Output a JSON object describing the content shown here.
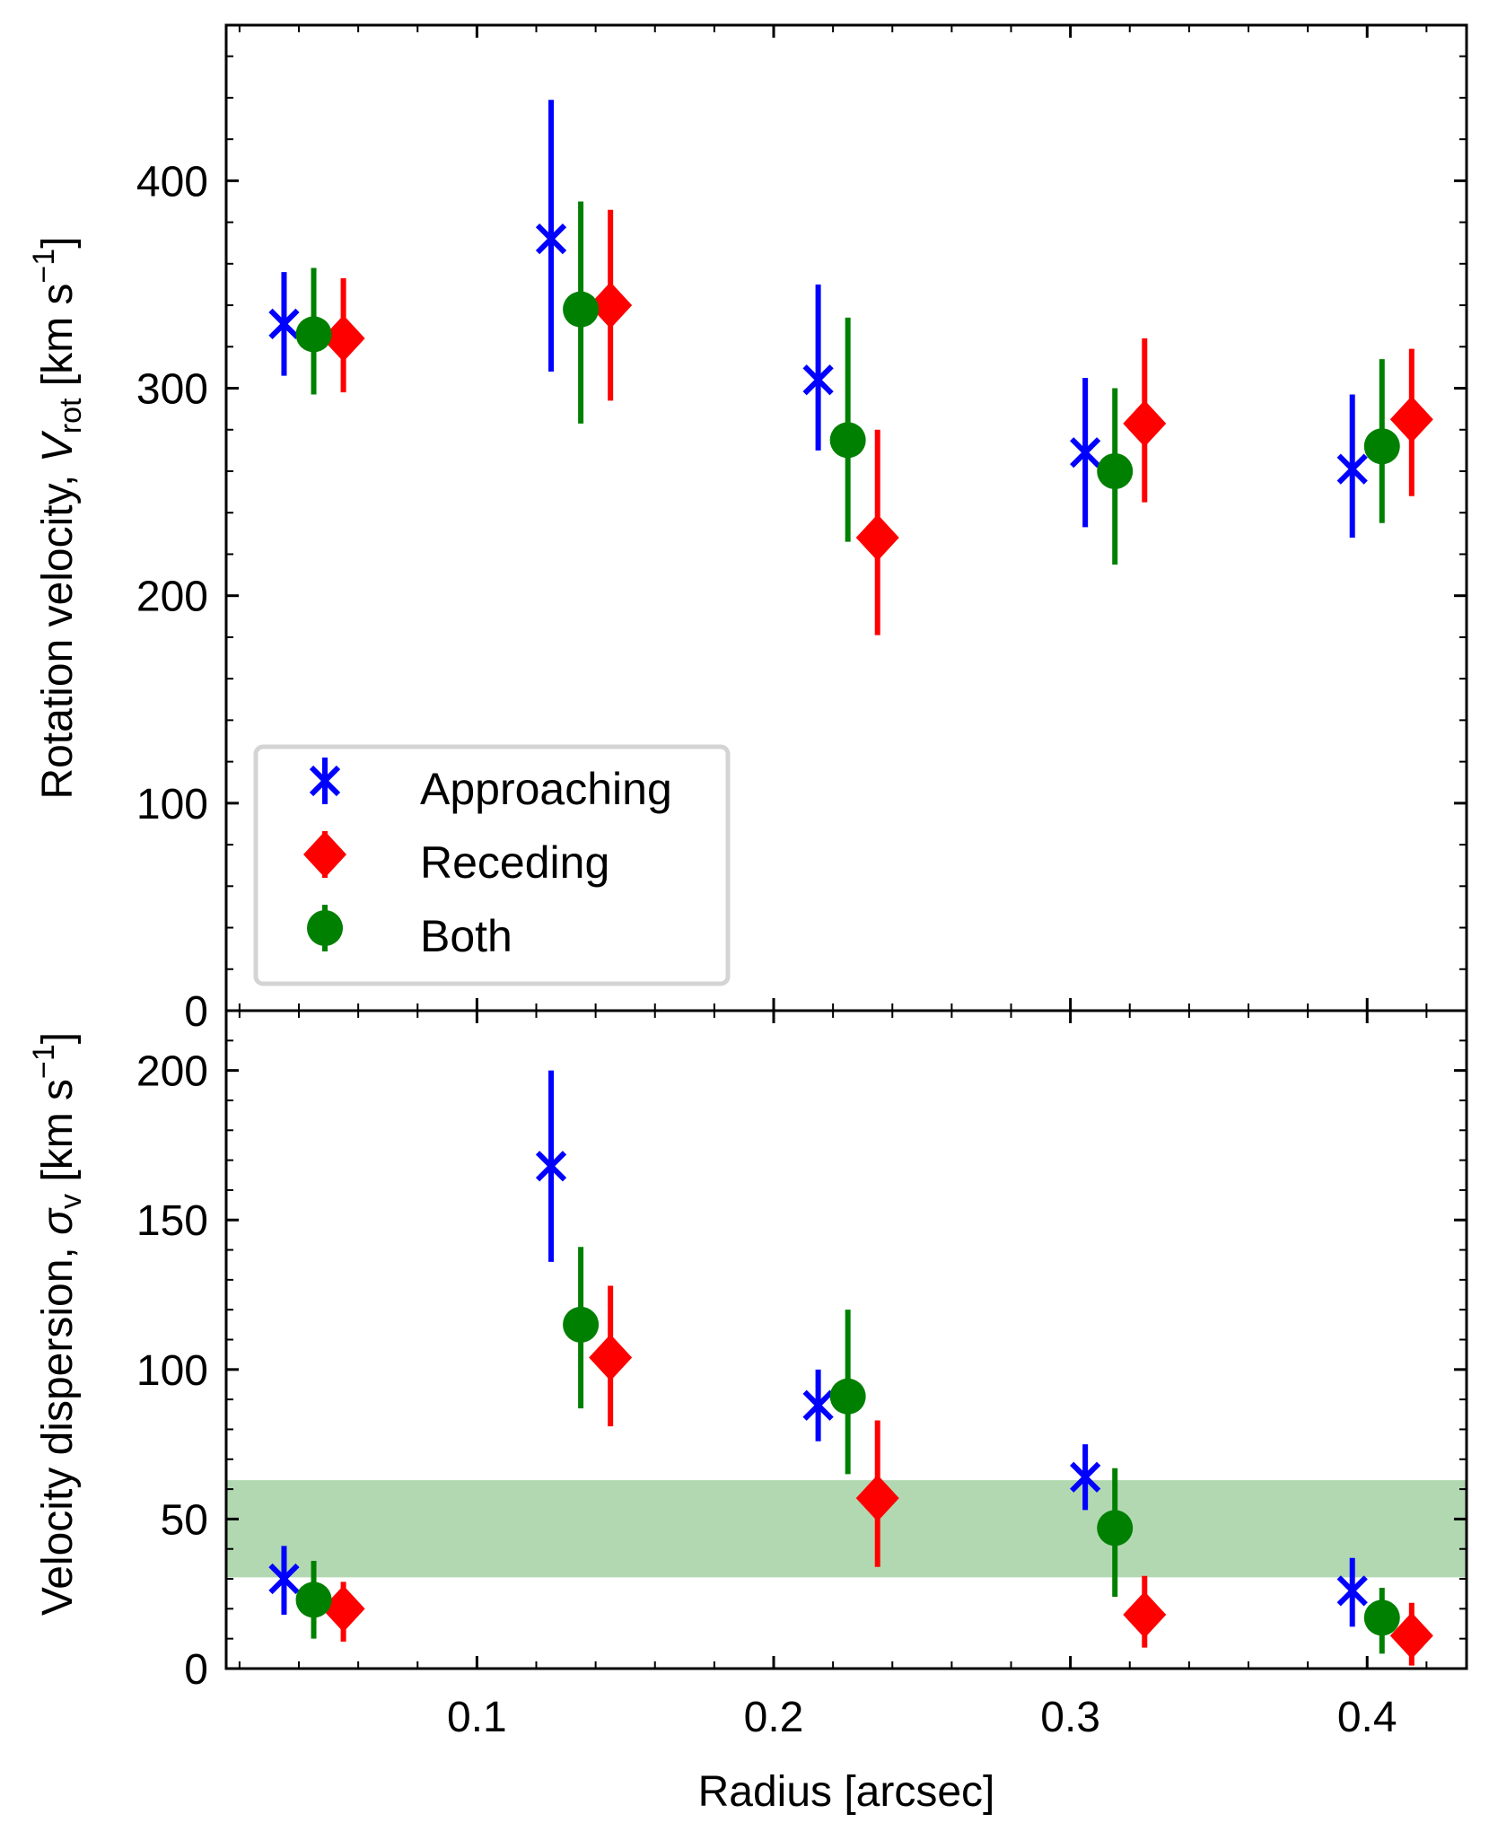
{
  "chart_data": [
    {
      "type": "scatter",
      "panel": "top",
      "xlabel": "",
      "ylabel_parts": {
        "main": "Rotation velocity, ",
        "sym": "V",
        "sub": "rot",
        "unit": " [km s",
        "exp": "−1",
        "close": "]"
      },
      "xlim": [
        0.0155,
        0.4335
      ],
      "ylim": [
        0,
        475
      ],
      "yticks_major": [
        0,
        100,
        200,
        300,
        400
      ],
      "yticks_minor_step": 20,
      "yticklabels": [
        "0",
        "100",
        "200",
        "300",
        "400"
      ],
      "grid": false,
      "legend": {
        "position": "lower-left",
        "entries": [
          "Approaching",
          "Receding",
          "Both"
        ]
      },
      "series": [
        {
          "name": "Approaching",
          "marker": "x",
          "color": "#0000ff",
          "x": [
            0.035,
            0.125,
            0.215,
            0.305,
            0.395
          ],
          "y": [
            331,
            372,
            304,
            269,
            261
          ],
          "ylow": [
            306,
            308,
            270,
            233,
            228
          ],
          "yhigh": [
            356,
            439,
            350,
            305,
            297
          ]
        },
        {
          "name": "Receding",
          "marker": "diamond",
          "color": "#ff0000",
          "x": [
            0.055,
            0.145,
            0.235,
            0.325,
            0.415
          ],
          "y": [
            324,
            340,
            228,
            283,
            285
          ],
          "ylow": [
            298,
            294,
            181,
            245,
            248
          ],
          "yhigh": [
            353,
            386,
            280,
            324,
            319
          ]
        },
        {
          "name": "Both",
          "marker": "circle",
          "color": "#008000",
          "x": [
            0.045,
            0.135,
            0.225,
            0.315,
            0.405
          ],
          "y": [
            326,
            338,
            275,
            260,
            272
          ],
          "ylow": [
            297,
            283,
            226,
            215,
            235
          ],
          "yhigh": [
            358,
            390,
            334,
            300,
            314
          ]
        }
      ]
    },
    {
      "type": "scatter",
      "panel": "bottom",
      "xlabel": "Radius [arcsec]",
      "ylabel_parts": {
        "main": "Velocity dispersion, ",
        "sym": "σ",
        "sub": "v",
        "unit": " [km s",
        "exp": "−1",
        "close": "]"
      },
      "xlim": [
        0.0155,
        0.4335
      ],
      "ylim": [
        0,
        220
      ],
      "xticks_major": [
        0.1,
        0.2,
        0.3,
        0.4
      ],
      "xticklabels": [
        "0.1",
        "0.2",
        "0.3",
        "0.4"
      ],
      "xticks_minor_step": 0.02,
      "yticks_major": [
        0,
        50,
        100,
        150,
        200
      ],
      "yticklabels": [
        "0",
        "50",
        "100",
        "150",
        "200"
      ],
      "yticks_minor_step": 10,
      "grid": false,
      "band": {
        "ymin": 30.5,
        "ymax": 63,
        "color": "#b2d8b2"
      },
      "series": [
        {
          "name": "Approaching",
          "marker": "x",
          "color": "#0000ff",
          "x": [
            0.035,
            0.125,
            0.215,
            0.305,
            0.395
          ],
          "y": [
            30,
            168,
            88,
            64,
            26
          ],
          "ylow": [
            18,
            136,
            76,
            53,
            14
          ],
          "yhigh": [
            41,
            200,
            100,
            75,
            37
          ]
        },
        {
          "name": "Receding",
          "marker": "diamond",
          "color": "#ff0000",
          "x": [
            0.055,
            0.145,
            0.235,
            0.325,
            0.415
          ],
          "y": [
            20,
            104,
            57,
            18,
            11
          ],
          "ylow": [
            9,
            81,
            34,
            7,
            1
          ],
          "yhigh": [
            29,
            128,
            83,
            31,
            22
          ]
        },
        {
          "name": "Both",
          "marker": "circle",
          "color": "#008000",
          "x": [
            0.045,
            0.135,
            0.225,
            0.315,
            0.405
          ],
          "y": [
            23,
            115,
            91,
            47,
            17
          ],
          "ylow": [
            10,
            87,
            65,
            24,
            5
          ],
          "yhigh": [
            36,
            141,
            120,
            67,
            27
          ]
        }
      ]
    }
  ]
}
